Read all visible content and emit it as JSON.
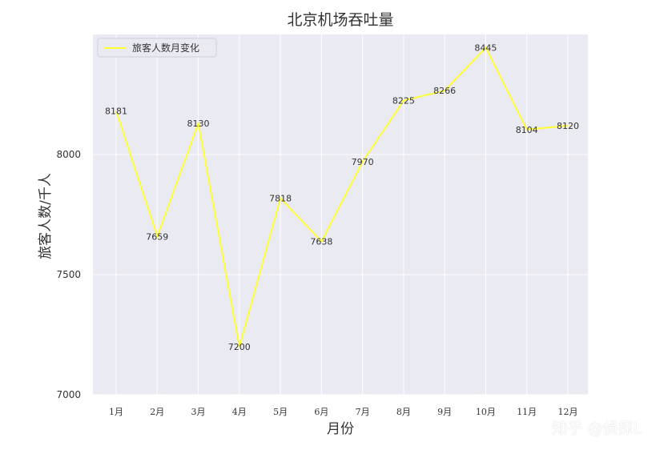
{
  "watermark": "知乎 @侦探L",
  "chart_data": {
    "type": "line",
    "title": "北京机场吞吐量",
    "xlabel": "月份",
    "ylabel": "旅客人数/千人",
    "categories": [
      "1月",
      "2月",
      "3月",
      "4月",
      "5月",
      "6月",
      "7月",
      "8月",
      "9月",
      "10月",
      "11月",
      "12月"
    ],
    "series": [
      {
        "name": "旅客人数月变化",
        "color": "#ffff33",
        "values": [
          8181,
          7659,
          8130,
          7200,
          7818,
          7638,
          7970,
          8225,
          8266,
          8445,
          8104,
          8120
        ]
      }
    ],
    "ylim": [
      7000,
      8500
    ],
    "yticks": [
      7000,
      7500,
      8000
    ],
    "grid": true,
    "background": "#eaeaf2",
    "legend_position": "top-left",
    "data_labels": true
  }
}
